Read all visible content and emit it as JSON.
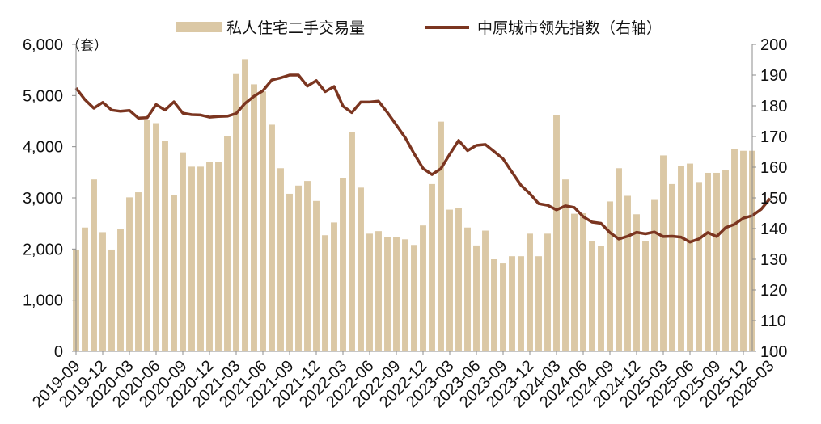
{
  "colors": {
    "bars": "#DBC8A5",
    "line": "#7B3520",
    "axis": "#8C8C8C",
    "text": "#111111"
  },
  "left_axis_unit": "（套）",
  "chart_data": {
    "type": "bar+line",
    "legend_position": "top",
    "grid": false,
    "x_tick_labels": [
      "2019-09",
      "2019-12",
      "2020-03",
      "2020-06",
      "2020-09",
      "2020-12",
      "2021-03",
      "2021-06",
      "2021-09",
      "2021-12",
      "2022-03",
      "2022-06",
      "2022-09",
      "2022-12",
      "2023-03",
      "2023-06",
      "2023-09",
      "2023-12",
      "2024-03",
      "2024-06",
      "2024-09",
      "2024-12",
      "2025-03",
      "2025-06",
      "2025-09",
      "2025-12",
      "2026-03"
    ],
    "x_start": "2019-09",
    "left_axis": {
      "ylim": [
        0,
        6000
      ],
      "ticks": [
        "0",
        "1,000",
        "2,000",
        "3,000",
        "4,000",
        "5,000",
        "6,000"
      ]
    },
    "right_axis": {
      "ylim": [
        100,
        200
      ],
      "ticks": [
        "100",
        "110",
        "120",
        "130",
        "140",
        "150",
        "160",
        "170",
        "180",
        "190",
        "200"
      ]
    },
    "series": [
      {
        "name": "私人住宅二手交易量",
        "type": "bar",
        "axis": "left",
        "values": [
          1990,
          2420,
          3360,
          2330,
          1990,
          2400,
          3010,
          3110,
          4530,
          4460,
          4110,
          3050,
          3890,
          3610,
          3610,
          3700,
          3700,
          4210,
          5420,
          5710,
          5220,
          5080,
          4430,
          3580,
          3080,
          3240,
          3330,
          2940,
          2270,
          2520,
          3380,
          4280,
          3200,
          2300,
          2350,
          2240,
          2240,
          2190,
          2080,
          2460,
          3270,
          4490,
          2770,
          2800,
          2420,
          2070,
          2360,
          1800,
          1720,
          1860,
          1860,
          2300,
          1860,
          2300,
          4620,
          3360,
          2690,
          2700,
          2160,
          2060,
          2930,
          3580,
          3040,
          2680,
          2150,
          2960,
          3830,
          3270,
          3620,
          3670,
          3310,
          3490,
          3490,
          3550,
          3960,
          3920,
          3920
        ]
      },
      {
        "name": "中原城市领先指数（右轴）",
        "type": "line",
        "axis": "right",
        "values": [
          185.8,
          182.0,
          179.2,
          181.1,
          178.6,
          178.2,
          178.5,
          176.0,
          176.1,
          180.4,
          178.6,
          181.3,
          177.6,
          177.1,
          177.0,
          176.3,
          176.5,
          176.6,
          177.5,
          180.8,
          183.1,
          184.9,
          188.4,
          189.1,
          190.0,
          190.0,
          186.4,
          188.2,
          184.6,
          186.3,
          179.9,
          177.8,
          181.2,
          181.2,
          181.5,
          177.8,
          173.7,
          169.6,
          164.4,
          159.6,
          157.6,
          159.5,
          164.2,
          168.7,
          165.4,
          167.1,
          167.4,
          165.1,
          162.7,
          158.4,
          154.1,
          151.4,
          148.1,
          147.6,
          146.1,
          147.4,
          146.9,
          143.9,
          142.1,
          141.7,
          138.7,
          136.6,
          137.5,
          138.8,
          138.3,
          138.9,
          137.4,
          137.5,
          137.2,
          135.6,
          136.6,
          138.7,
          137.4,
          140.3,
          141.4,
          143.4,
          144.2,
          146.3,
          149.8
        ]
      }
    ]
  }
}
